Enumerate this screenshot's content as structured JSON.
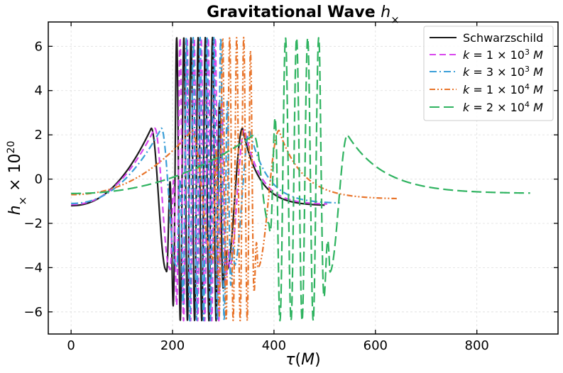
{
  "chart_data": {
    "type": "line",
    "title": "Gravitational Wave h×",
    "xlabel": "τ(M)",
    "ylabel": "h× × 10^20",
    "xlim": [
      -45,
      960
    ],
    "ylim": [
      -7,
      7.1
    ],
    "x_ticks": [
      0,
      200,
      400,
      600,
      800
    ],
    "x_tick_labels": [
      "0",
      "200",
      "400",
      "600",
      "800"
    ],
    "y_ticks": [
      -6,
      -4,
      -2,
      0,
      2,
      4,
      6
    ],
    "y_tick_labels": [
      "−6",
      "−4",
      "−2",
      "0",
      "2",
      "4",
      "6"
    ],
    "grid": true,
    "legend_position": "top-right",
    "series": [
      {
        "name": "Schwarzschild",
        "color": "#1a1a1a",
        "dash": "solid",
        "params": {
          "start": 0,
          "peak_before": 158,
          "start_osc": 187,
          "end_osc": 307,
          "peak_after": 338,
          "end": 500,
          "v_start": -1.2,
          "v_peak_before": 2.3,
          "v_peak_after": 2.3,
          "v_end": -1.2,
          "amplitude": 6.4,
          "cycles": 8.5,
          "dip_before": -4.1,
          "dip_after": -4.1
        }
      },
      {
        "name": "k = 1 × 10^3 M",
        "color": "#d946ef",
        "dash": "9,5",
        "params": {
          "start": 0,
          "peak_before": 165,
          "start_osc": 194,
          "end_osc": 312,
          "peak_after": 342,
          "end": 505,
          "v_start": -1.15,
          "v_peak_before": 2.3,
          "v_peak_after": 2.25,
          "v_end": -1.15,
          "amplitude": 6.4,
          "cycles": 8.5,
          "dip_before": -4.0,
          "dip_after": -4.0
        }
      },
      {
        "name": "k = 3 × 10^3 M",
        "color": "#3b9fd8",
        "dash": "10,4,2,4",
        "params": {
          "start": 0,
          "peak_before": 178,
          "start_osc": 207,
          "end_osc": 322,
          "peak_after": 352,
          "end": 530,
          "v_start": -1.1,
          "v_peak_before": 2.3,
          "v_peak_after": 2.2,
          "v_end": -1.1,
          "amplitude": 6.4,
          "cycles": 8.5,
          "dip_before": -3.9,
          "dip_after": -3.9
        }
      },
      {
        "name": "k = 1 × 10^4 M",
        "color": "#e8742a",
        "dash": "8,3,2,3,2,3",
        "params": {
          "start": 0,
          "peak_before": 238,
          "start_osc": 278,
          "end_osc": 368,
          "peak_after": 410,
          "end": 642,
          "v_start": -0.7,
          "v_peak_before": 2.2,
          "v_peak_after": 2.2,
          "v_end": -0.9,
          "amplitude": 6.4,
          "cycles": 6.5,
          "dip_before": -3.5,
          "dip_after": -4.0
        }
      },
      {
        "name": "k = 2 × 10^4 M",
        "color": "#2fb360",
        "dash": "14,6",
        "params": {
          "start": 0,
          "peak_before": 360,
          "start_osc": 390,
          "end_osc": 510,
          "peak_after": 545,
          "end": 905,
          "v_start": -0.65,
          "v_peak_before": 2.0,
          "v_peak_after": 2.0,
          "v_end": -0.65,
          "amplitude": 6.4,
          "cycles": 5.5,
          "dip_before": -2.0,
          "dip_after": -4.2
        }
      }
    ]
  }
}
